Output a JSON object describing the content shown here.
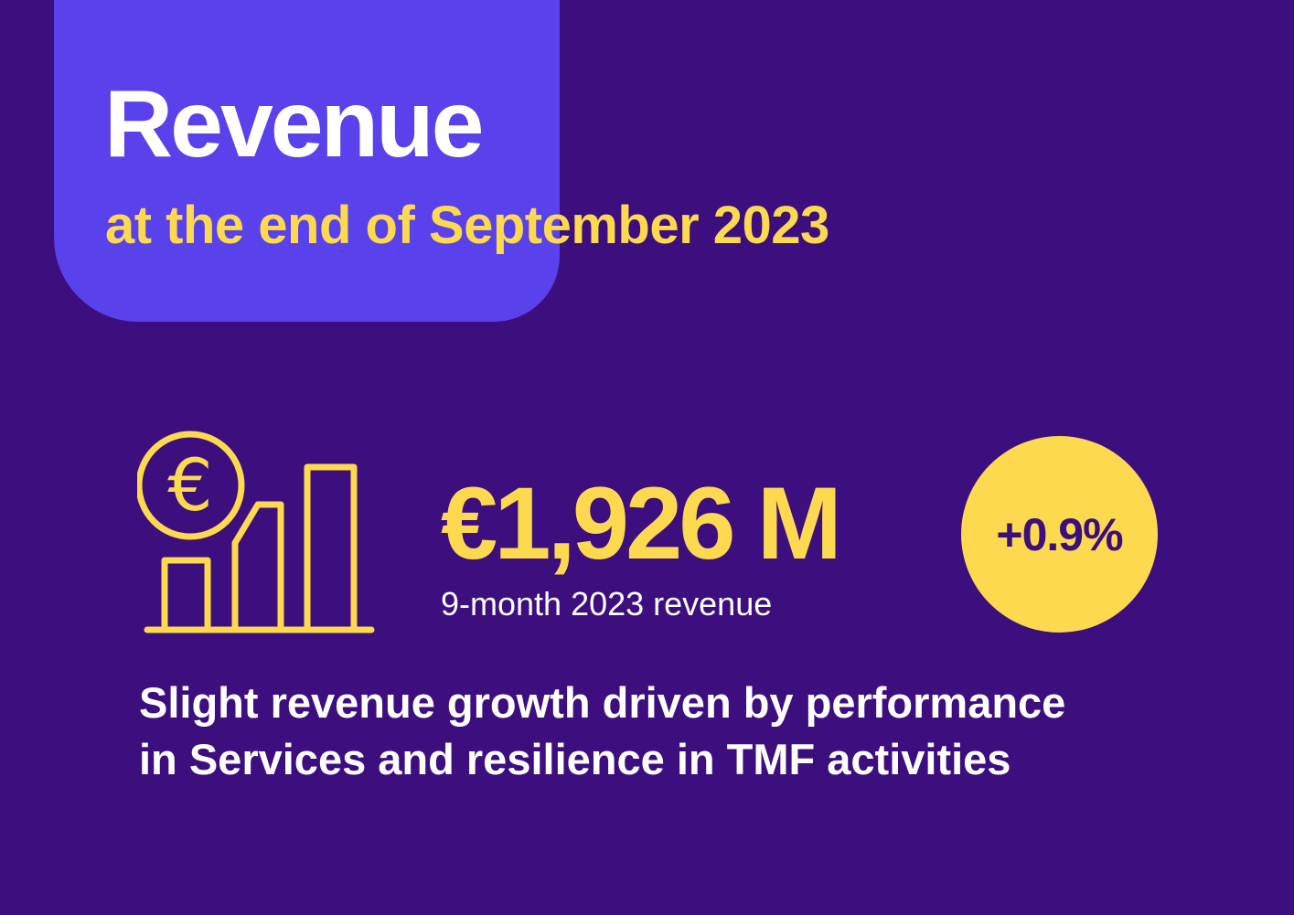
{
  "header": {
    "title": "Revenue",
    "subtitle": "at the end of September 2023"
  },
  "kpi": {
    "icon": "euro-bar-chart-icon",
    "value": "€1,926 M",
    "caption": "9-month 2023 revenue",
    "growth": "+0.9%"
  },
  "summary": {
    "line1": "Slight revenue growth driven by performance",
    "line2": "in Services and resilience in TMF activities"
  },
  "colors": {
    "background": "#3d0e7e",
    "tab": "#5941ec",
    "accent": "#fcd94f",
    "text": "#ffffff"
  }
}
